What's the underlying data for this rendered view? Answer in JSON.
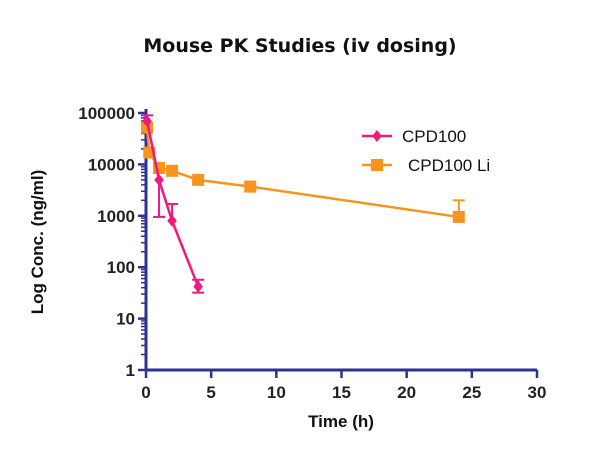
{
  "chart_data": {
    "type": "line",
    "title": "Mouse PK Studies (iv dosing)",
    "xlabel": "Time (h)",
    "ylabel": "Log Conc. (ng/ml)",
    "xlim": [
      0,
      30
    ],
    "ylim": [
      1,
      100000
    ],
    "yscale": "log",
    "xticks": [
      "0",
      "5",
      "10",
      "15",
      "20",
      "25",
      "30"
    ],
    "yticks": [
      "1",
      "10",
      "100",
      "1000",
      "10000",
      "100000"
    ],
    "legend_position": "top-right",
    "axis_color": "#2e3192",
    "series": [
      {
        "name": "CPD100",
        "color": "#f0197d",
        "marker": "diamond",
        "x": [
          0.083,
          1,
          2,
          4
        ],
        "y": [
          70000,
          5000,
          800,
          42
        ],
        "err_low": [
          null,
          950,
          null,
          32
        ],
        "err_high": [
          90000,
          null,
          1700,
          57
        ]
      },
      {
        "name": "CPD100 Li",
        "color": "#f7941d",
        "marker": "square",
        "x": [
          0.083,
          0.25,
          1,
          2,
          4,
          8,
          24
        ],
        "y": [
          52000,
          17000,
          8500,
          7500,
          5000,
          3700,
          950
        ],
        "err_low": [
          null,
          null,
          null,
          null,
          null,
          null,
          null
        ],
        "err_high": [
          null,
          null,
          null,
          null,
          null,
          null,
          2000
        ]
      }
    ]
  }
}
